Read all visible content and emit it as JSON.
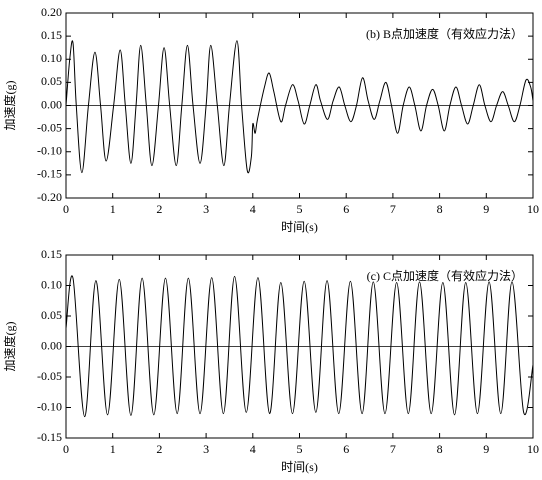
{
  "chart_data": [
    {
      "type": "line",
      "annotation": "(b) B点加速度（有效应力法）",
      "xlabel": "时间(s)",
      "ylabel": "加速度(g)",
      "xlim": [
        0,
        10
      ],
      "xticks": [
        0,
        1,
        2,
        3,
        4,
        5,
        6,
        7,
        8,
        9,
        10
      ],
      "ylim": [
        -0.2,
        0.2
      ],
      "yticks": [
        {
          "value": -0.2,
          "label": "-0.20"
        },
        {
          "value": -0.15,
          "label": "-0.15"
        },
        {
          "value": -0.1,
          "label": "-0.10"
        },
        {
          "value": -0.05,
          "label": "-0.05"
        },
        {
          "value": 0,
          "label": "0.00"
        },
        {
          "value": 0.05,
          "label": "0.05"
        },
        {
          "value": 0.1,
          "label": "0.10"
        },
        {
          "value": 0.15,
          "label": "0.15"
        },
        {
          "value": 0.2,
          "label": "0.20"
        }
      ],
      "reference_line": 0,
      "color": "#000000",
      "x": [
        0,
        0.08,
        0.15,
        0.22,
        0.34,
        0.48,
        0.62,
        0.74,
        0.86,
        1.02,
        1.16,
        1.27,
        1.39,
        1.5,
        1.6,
        1.72,
        1.84,
        1.98,
        2.1,
        2.22,
        2.36,
        2.48,
        2.6,
        2.72,
        2.87,
        3.0,
        3.1,
        3.24,
        3.38,
        3.5,
        3.66,
        3.76,
        3.88,
        3.97,
        4.0,
        4.05,
        4.1,
        4.25,
        4.35,
        4.45,
        4.6,
        4.7,
        4.85,
        4.97,
        5.1,
        5.22,
        5.35,
        5.45,
        5.6,
        5.72,
        5.85,
        5.97,
        6.1,
        6.22,
        6.35,
        6.47,
        6.6,
        6.72,
        6.85,
        6.97,
        7.1,
        7.22,
        7.35,
        7.47,
        7.6,
        7.72,
        7.85,
        7.97,
        8.1,
        8.22,
        8.35,
        8.47,
        8.6,
        8.72,
        8.85,
        8.97,
        9.1,
        9.22,
        9.35,
        9.47,
        9.6,
        9.72,
        9.85,
        9.95,
        10
      ],
      "values": [
        0,
        0.1,
        0.135,
        0,
        -0.145,
        0,
        0.115,
        0,
        -0.12,
        0,
        0.12,
        0,
        -0.125,
        0,
        0.13,
        0,
        -0.13,
        0,
        0.125,
        0,
        -0.13,
        0,
        0.13,
        0,
        -0.125,
        0,
        0.13,
        0,
        -0.13,
        0,
        0.14,
        0,
        -0.14,
        -0.11,
        -0.04,
        -0.06,
        -0.03,
        0.04,
        0.07,
        0.03,
        -0.035,
        0,
        0.045,
        0.01,
        -0.04,
        0,
        0.045,
        0.01,
        -0.03,
        0.01,
        0.04,
        0,
        -0.035,
        0,
        0.06,
        0.01,
        -0.03,
        0.01,
        0.05,
        0,
        -0.06,
        0,
        0.04,
        0,
        -0.055,
        0,
        0.035,
        0,
        -0.055,
        0,
        0.04,
        0,
        -0.04,
        0,
        0.045,
        0,
        -0.035,
        0,
        0.03,
        0,
        -0.035,
        0,
        0.055,
        0.04,
        0.01
      ]
    },
    {
      "type": "line",
      "annotation": "(c) C点加速度（有效应力法）",
      "xlabel": "时间(s)",
      "ylabel": "加速度(g)",
      "xlim": [
        0,
        10
      ],
      "xticks": [
        0,
        1,
        2,
        3,
        4,
        5,
        6,
        7,
        8,
        9,
        10
      ],
      "ylim": [
        -0.15,
        0.15
      ],
      "yticks": [
        {
          "value": -0.15,
          "label": "-0.15"
        },
        {
          "value": -0.1,
          "label": "-0.10"
        },
        {
          "value": -0.05,
          "label": "-0.05"
        },
        {
          "value": 0,
          "label": "0.00"
        },
        {
          "value": 0.05,
          "label": "0.05"
        },
        {
          "value": 0.1,
          "label": "0.10"
        },
        {
          "value": 0.15,
          "label": "0.15"
        }
      ],
      "reference_line": 0,
      "color": "#000000",
      "x": [
        0,
        0.15,
        0.4,
        0.64,
        0.89,
        1.14,
        1.39,
        1.63,
        1.88,
        2.13,
        2.38,
        2.62,
        2.87,
        3.12,
        3.37,
        3.61,
        3.86,
        4.11,
        4.36,
        4.6,
        4.85,
        5.1,
        5.35,
        5.59,
        5.84,
        6.09,
        6.34,
        6.58,
        6.83,
        7.08,
        7.33,
        7.57,
        7.82,
        8.07,
        8.32,
        8.56,
        8.81,
        9.06,
        9.31,
        9.55,
        9.8,
        10
      ],
      "values": [
        0.03,
        0.112,
        -0.115,
        0.108,
        -0.112,
        0.11,
        -0.113,
        0.112,
        -0.112,
        0.112,
        -0.11,
        0.112,
        -0.11,
        0.113,
        -0.11,
        0.115,
        -0.108,
        0.113,
        -0.11,
        0.105,
        -0.11,
        0.107,
        -0.108,
        0.108,
        -0.11,
        0.107,
        -0.11,
        0.106,
        -0.11,
        0.105,
        -0.11,
        0.106,
        -0.11,
        0.105,
        -0.112,
        0.105,
        -0.11,
        0.106,
        -0.11,
        0.106,
        -0.108,
        -0.03
      ]
    }
  ]
}
